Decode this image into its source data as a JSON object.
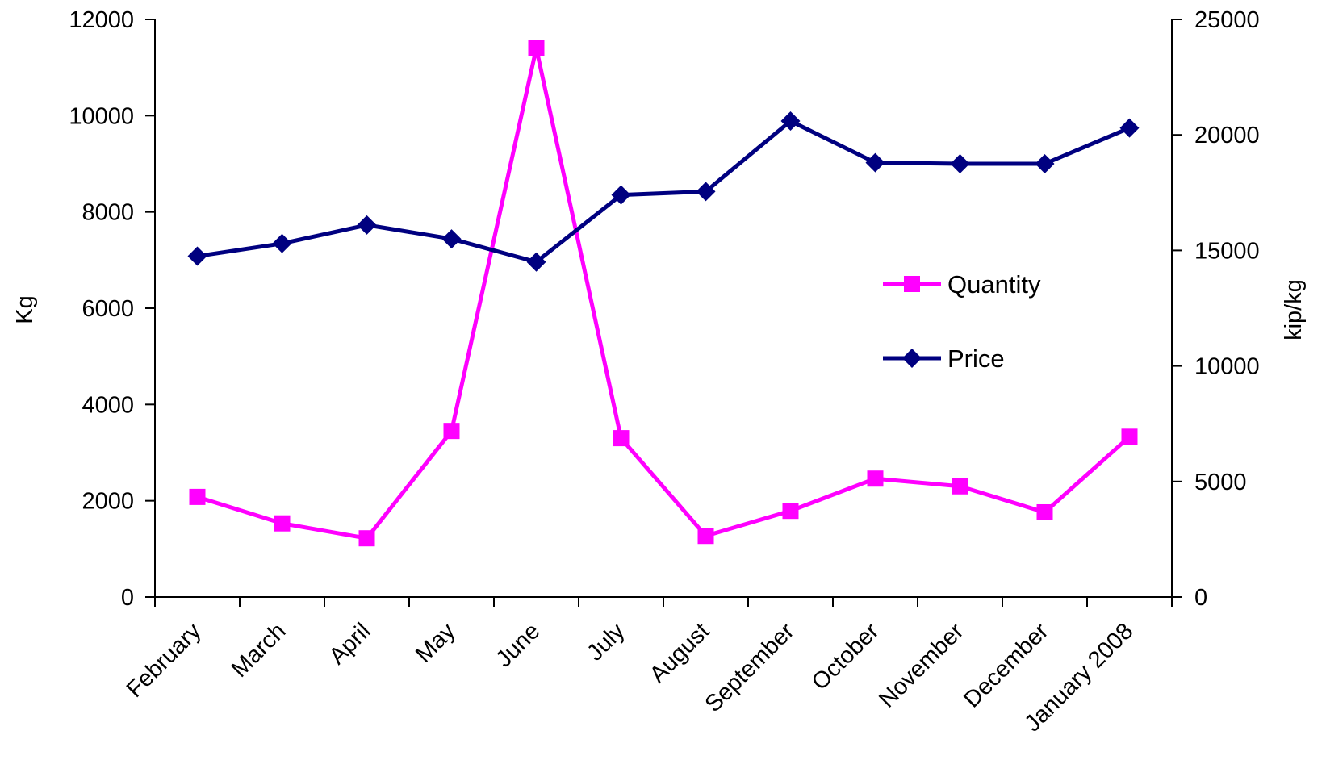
{
  "chart_data": {
    "type": "line",
    "title": "",
    "xlabel": "",
    "ylabel": "Kg",
    "y2label": "kip/kg",
    "ylim": [
      0,
      12000
    ],
    "y2lim": [
      0,
      25000
    ],
    "yticks": [
      "0",
      "2000",
      "4000",
      "6000",
      "8000",
      "10000",
      "12000"
    ],
    "y2ticks": [
      "0",
      "5000",
      "10000",
      "15000",
      "20000",
      "25000"
    ],
    "grid": false,
    "legend_position": "right",
    "categories": [
      "February",
      "March",
      "April",
      "May",
      "June",
      "July",
      "August",
      "September",
      "October",
      "November",
      "December",
      "January 2008"
    ],
    "series": [
      {
        "name": "Quantity",
        "axis": "left",
        "marker": "square",
        "color": "#ff00ff",
        "values": [
          2080,
          1530,
          1220,
          3450,
          11400,
          3300,
          1270,
          1790,
          2460,
          2300,
          1760,
          3330
        ]
      },
      {
        "name": "Price",
        "axis": "right",
        "marker": "diamond",
        "color": "#000080",
        "values": [
          14750,
          15300,
          16100,
          15500,
          14500,
          17400,
          17550,
          20600,
          18800,
          18750,
          18750,
          20300
        ]
      }
    ]
  }
}
